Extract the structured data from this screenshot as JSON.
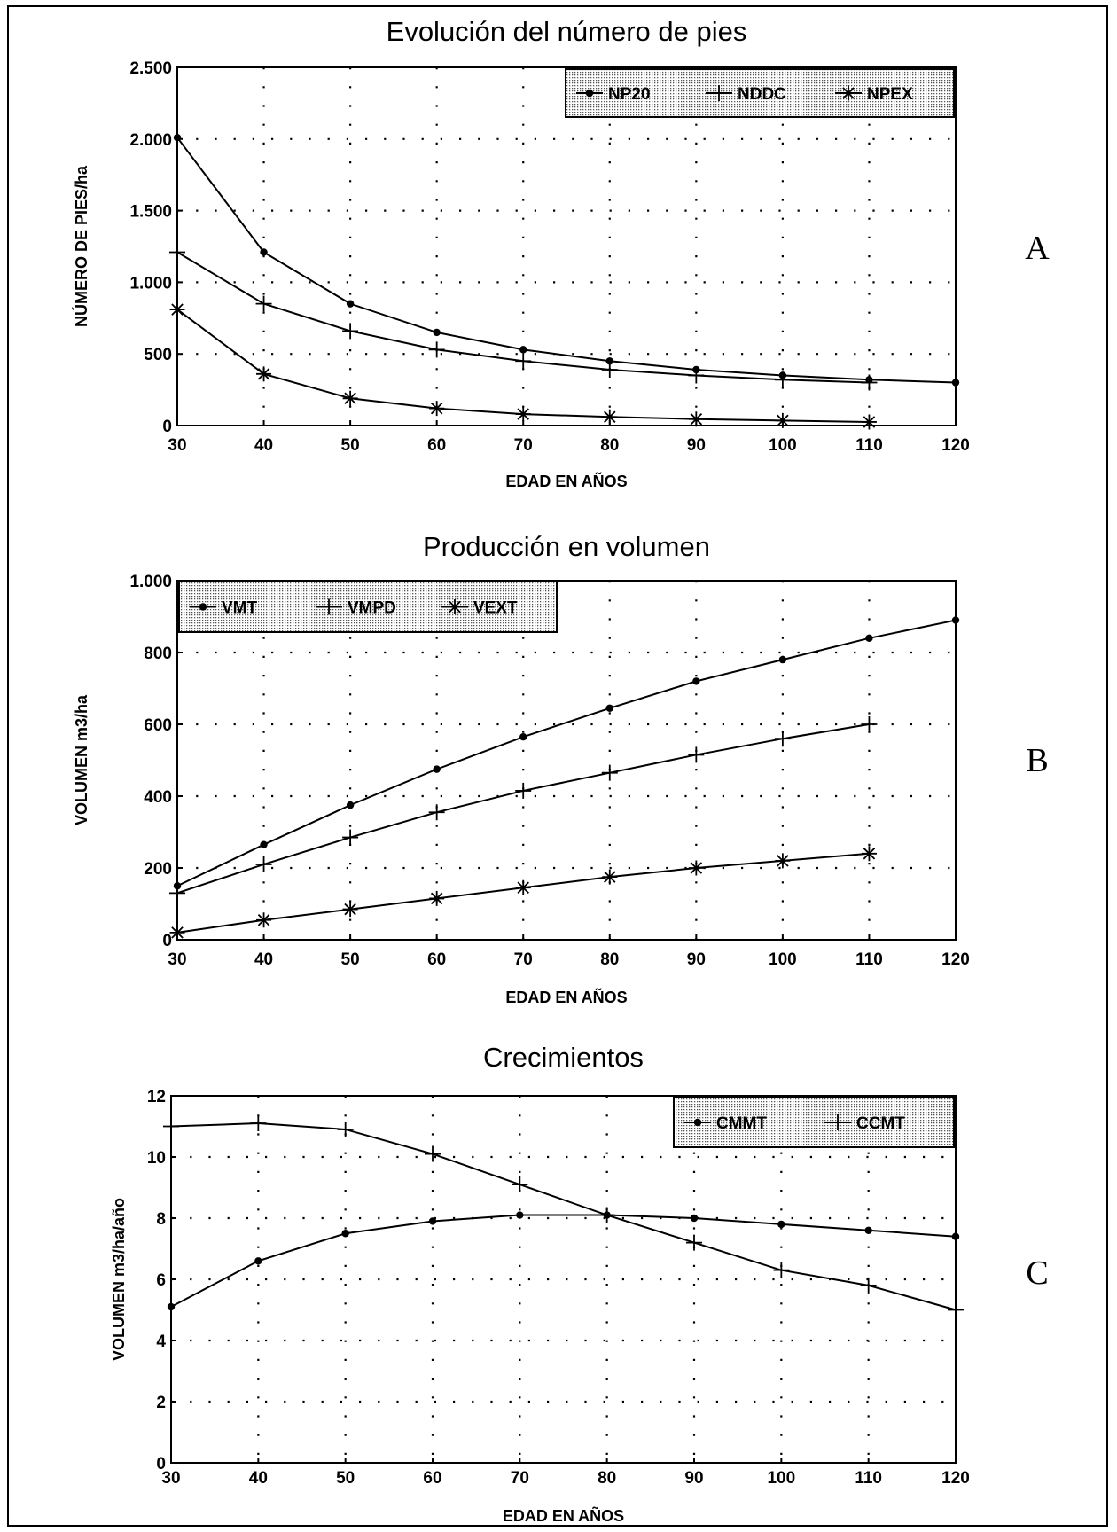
{
  "chart_data": [
    {
      "type": "line",
      "title": "Evolución del número de pies",
      "panel_label": "A",
      "xlabel": "EDAD EN AÑOS",
      "ylabel": "NÚMERO DE PIES/ha",
      "xlim": [
        30,
        120
      ],
      "ylim": [
        0,
        2500
      ],
      "xticks": [
        30,
        40,
        50,
        60,
        70,
        80,
        90,
        100,
        110,
        120
      ],
      "xtick_labels": [
        "30",
        "40",
        "50",
        "60",
        "70",
        "80",
        "90",
        "100",
        "110",
        "120"
      ],
      "yticks": [
        0,
        500,
        1000,
        1500,
        2000,
        2500
      ],
      "ytick_labels": [
        "0",
        "500",
        "1.000",
        "1.500",
        "2.000",
        "2.500"
      ],
      "grid": true,
      "legend_position": "top-right",
      "series": [
        {
          "name": "NP20",
          "marker": "dot",
          "x": [
            30,
            40,
            50,
            60,
            70,
            80,
            90,
            100,
            110,
            120
          ],
          "values": [
            2010,
            1210,
            850,
            650,
            530,
            450,
            390,
            350,
            320,
            300
          ]
        },
        {
          "name": "NDDC",
          "marker": "plus",
          "x": [
            30,
            40,
            50,
            60,
            70,
            80,
            90,
            100,
            110
          ],
          "values": [
            1210,
            850,
            660,
            530,
            450,
            390,
            350,
            320,
            300
          ]
        },
        {
          "name": "NPEX",
          "marker": "star",
          "x": [
            30,
            40,
            50,
            60,
            70,
            80,
            90,
            100,
            110
          ],
          "values": [
            810,
            360,
            190,
            120,
            80,
            60,
            45,
            35,
            25
          ]
        }
      ]
    },
    {
      "type": "line",
      "title": "Producción en volumen",
      "panel_label": "B",
      "xlabel": "EDAD EN AÑOS",
      "ylabel": "VOLUMEN m3/ha",
      "xlim": [
        30,
        120
      ],
      "ylim": [
        0,
        1000
      ],
      "xticks": [
        30,
        40,
        50,
        60,
        70,
        80,
        90,
        100,
        110,
        120
      ],
      "xtick_labels": [
        "30",
        "40",
        "50",
        "60",
        "70",
        "80",
        "90",
        "100",
        "110",
        "120"
      ],
      "yticks": [
        0,
        200,
        400,
        600,
        800,
        1000
      ],
      "ytick_labels": [
        "0",
        "200",
        "400",
        "600",
        "800",
        "1.000"
      ],
      "grid": true,
      "legend_position": "top-left",
      "series": [
        {
          "name": "VMT",
          "marker": "dot",
          "x": [
            30,
            40,
            50,
            60,
            70,
            80,
            90,
            100,
            110,
            120
          ],
          "values": [
            150,
            265,
            375,
            475,
            565,
            645,
            720,
            780,
            840,
            890
          ]
        },
        {
          "name": "VMPD",
          "marker": "plus",
          "x": [
            30,
            40,
            50,
            60,
            70,
            80,
            90,
            100,
            110
          ],
          "values": [
            130,
            210,
            285,
            355,
            415,
            465,
            515,
            560,
            600
          ]
        },
        {
          "name": "VEXT",
          "marker": "star",
          "x": [
            30,
            40,
            50,
            60,
            70,
            80,
            90,
            100,
            110
          ],
          "values": [
            20,
            55,
            85,
            115,
            145,
            175,
            200,
            220,
            240
          ]
        }
      ]
    },
    {
      "type": "line",
      "title": "Crecimientos",
      "panel_label": "C",
      "xlabel": "EDAD EN AÑOS",
      "ylabel": "VOLUMEN m3/ha/año",
      "xlim": [
        30,
        120
      ],
      "ylim": [
        0,
        12
      ],
      "xticks": [
        30,
        40,
        50,
        60,
        70,
        80,
        90,
        100,
        110,
        120
      ],
      "xtick_labels": [
        "30",
        "40",
        "50",
        "60",
        "70",
        "80",
        "90",
        "100",
        "110",
        "120"
      ],
      "yticks": [
        0,
        2,
        4,
        6,
        8,
        10,
        12
      ],
      "ytick_labels": [
        "0",
        "2",
        "4",
        "6",
        "8",
        "10",
        "12"
      ],
      "grid": true,
      "legend_position": "top-right",
      "series": [
        {
          "name": "CMMT",
          "marker": "dot",
          "x": [
            30,
            40,
            50,
            60,
            70,
            80,
            90,
            100,
            110,
            120
          ],
          "values": [
            5.1,
            6.6,
            7.5,
            7.9,
            8.1,
            8.1,
            8.0,
            7.8,
            7.6,
            7.4
          ]
        },
        {
          "name": "CCMT",
          "marker": "plus",
          "x": [
            30,
            40,
            50,
            60,
            70,
            80,
            90,
            100,
            110,
            120
          ],
          "values": [
            11.0,
            11.1,
            10.9,
            10.1,
            9.1,
            8.1,
            7.2,
            6.3,
            5.8,
            5.0
          ]
        }
      ]
    }
  ]
}
